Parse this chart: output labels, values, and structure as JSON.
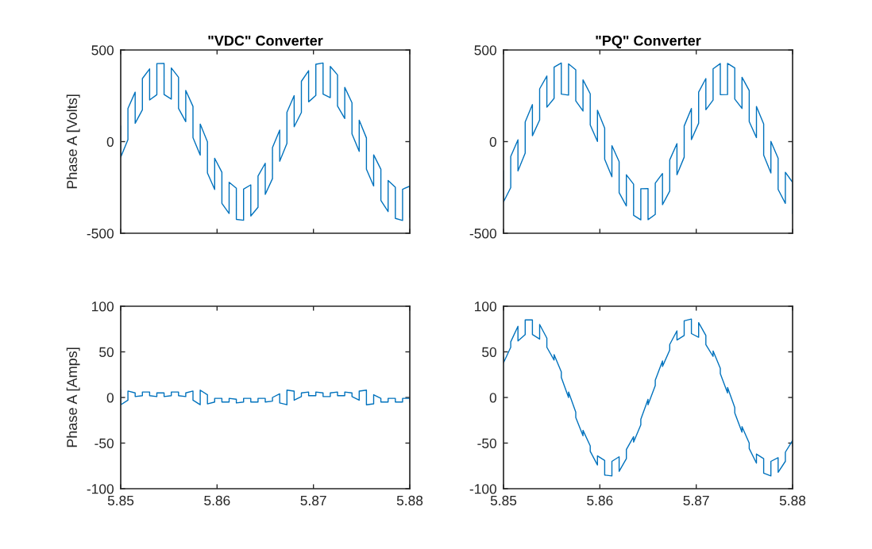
{
  "chart_data": [
    {
      "type": "line",
      "title": "\"VDC\" Converter",
      "ylabel": "Phase A [Volts]",
      "tick_labels": "y",
      "x": [
        5.85,
        5.85,
        5.85075,
        5.85075,
        5.8515,
        5.8515,
        5.85225,
        5.85225,
        5.853,
        5.853,
        5.85375,
        5.85375,
        5.8545,
        5.8545,
        5.85525,
        5.85525,
        5.856,
        5.856,
        5.85675,
        5.85675,
        5.8575,
        5.8575,
        5.85825,
        5.85825,
        5.859,
        5.859,
        5.85975,
        5.85975,
        5.8605,
        5.8605,
        5.86125,
        5.86125,
        5.862,
        5.862,
        5.86275,
        5.86275,
        5.8635,
        5.8635,
        5.86425,
        5.86425,
        5.865,
        5.865,
        5.86575,
        5.86575,
        5.8665,
        5.8665,
        5.86725,
        5.86725,
        5.868,
        5.868,
        5.86875,
        5.86875,
        5.8695,
        5.8695,
        5.87025,
        5.87025,
        5.871,
        5.871,
        5.87175,
        5.87175,
        5.8725,
        5.8725,
        5.87325,
        5.87325,
        5.874,
        5.874,
        5.87475,
        5.87475,
        5.8755,
        5.8755,
        5.87625,
        5.87625,
        5.877,
        5.877,
        5.87775,
        5.87775,
        5.8785,
        5.8785,
        5.87925,
        5.87925,
        5.88,
        5.88
      ],
      "series": [
        {
          "color": "#0072bd",
          "values": [
            85,
            -85,
            11,
            181,
            270,
            100,
            174,
            344,
            397,
            227,
            256,
            426,
            427,
            257,
            232,
            402,
            351,
            181,
            109,
            279,
            192,
            22,
            -74,
            96,
            -1,
            -171,
            -261,
            -91,
            -167,
            -337,
            -392,
            -222,
            -254,
            -424,
            -429,
            -259,
            -236,
            -406,
            -358,
            -188,
            -118,
            -288,
            -202,
            -32,
            63,
            -107,
            -10,
            160,
            251,
            81,
            159,
            329,
            387,
            217,
            252,
            422,
            429,
            259,
            240,
            410,
            364,
            194,
            126,
            296,
            212,
            42,
            -53,
            117,
            20,
            -150,
            -242,
            -72,
            -151,
            -321,
            -382,
            -212,
            -249,
            -419,
            -430,
            -260,
            -243,
            -413
          ]
        }
      ],
      "xlim": [
        5.85,
        5.88
      ],
      "xticks": [
        5.85,
        5.86,
        5.87,
        5.88
      ],
      "ylim": [
        -500,
        500
      ],
      "yticks": [
        -500,
        0,
        500
      ]
    },
    {
      "type": "line",
      "title": "\"PQ\" Converter",
      "tick_labels": "y",
      "x": [
        5.85,
        5.85,
        5.85075,
        5.85075,
        5.8515,
        5.8515,
        5.85225,
        5.85225,
        5.853,
        5.853,
        5.85375,
        5.85375,
        5.8545,
        5.8545,
        5.85525,
        5.85525,
        5.856,
        5.856,
        5.85675,
        5.85675,
        5.8575,
        5.8575,
        5.85825,
        5.85825,
        5.859,
        5.859,
        5.85975,
        5.85975,
        5.8605,
        5.8605,
        5.86125,
        5.86125,
        5.862,
        5.862,
        5.86275,
        5.86275,
        5.8635,
        5.8635,
        5.86425,
        5.86425,
        5.865,
        5.865,
        5.86575,
        5.86575,
        5.8665,
        5.8665,
        5.86725,
        5.86725,
        5.868,
        5.868,
        5.86875,
        5.86875,
        5.8695,
        5.8695,
        5.87025,
        5.87025,
        5.871,
        5.871,
        5.87175,
        5.87175,
        5.8725,
        5.8725,
        5.87325,
        5.87325,
        5.874,
        5.874,
        5.87475,
        5.87475,
        5.8755,
        5.8755,
        5.87625,
        5.87625,
        5.877,
        5.877,
        5.87775,
        5.87775,
        5.8785,
        5.8785,
        5.87925,
        5.87925,
        5.88,
        5.88
      ],
      "series": [
        {
          "color": "#0072bd",
          "values": [
            -159,
            -329,
            -251,
            -81,
            10,
            -160,
            -63,
            107,
            202,
            32,
            118,
            288,
            358,
            188,
            236,
            406,
            429,
            259,
            254,
            424,
            392,
            222,
            167,
            337,
            261,
            91,
            1,
            171,
            74,
            -96,
            -192,
            -22,
            -109,
            -279,
            -351,
            -181,
            -232,
            -402,
            -427,
            -257,
            -256,
            -426,
            -397,
            -227,
            -174,
            -344,
            -270,
            -100,
            -11,
            -181,
            -85,
            85,
            181,
            11,
            100,
            270,
            344,
            174,
            227,
            397,
            426,
            256,
            257,
            427,
            402,
            232,
            181,
            351,
            279,
            109,
            22,
            192,
            96,
            -74,
            -171,
            1,
            -91,
            -261,
            -337,
            -167,
            -222,
            -392
          ]
        }
      ],
      "xlim": [
        5.85,
        5.88
      ],
      "xticks": [
        5.85,
        5.86,
        5.87,
        5.88
      ],
      "ylim": [
        -500,
        500
      ],
      "yticks": [
        -500,
        0,
        500
      ]
    },
    {
      "type": "line",
      "ylabel": "Phase A [Amps]",
      "x": [
        5.85,
        5.85,
        5.85075,
        5.85075,
        5.8515,
        5.8515,
        5.85225,
        5.85225,
        5.853,
        5.853,
        5.85375,
        5.85375,
        5.8545,
        5.8545,
        5.85525,
        5.85525,
        5.856,
        5.856,
        5.85675,
        5.85675,
        5.8575,
        5.8575,
        5.85825,
        5.85825,
        5.859,
        5.859,
        5.85975,
        5.85975,
        5.8605,
        5.8605,
        5.86125,
        5.86125,
        5.862,
        5.862,
        5.86275,
        5.86275,
        5.8635,
        5.8635,
        5.86425,
        5.86425,
        5.865,
        5.865,
        5.86575,
        5.86575,
        5.8665,
        5.8665,
        5.86725,
        5.86725,
        5.868,
        5.868,
        5.86875,
        5.86875,
        5.8695,
        5.8695,
        5.87025,
        5.87025,
        5.871,
        5.871,
        5.87175,
        5.87175,
        5.8725,
        5.8725,
        5.87325,
        5.87325,
        5.874,
        5.874,
        5.87475,
        5.87475,
        5.8755,
        5.8755,
        5.87625,
        5.87625,
        5.877,
        5.877,
        5.87775,
        5.87775,
        5.8785,
        5.8785,
        5.87925,
        5.87925,
        5.88,
        5.88
      ],
      "series": [
        {
          "color": "#0072bd",
          "values": [
            8,
            -8,
            -3,
            7,
            5,
            1,
            2,
            6,
            6,
            2,
            1,
            5,
            5,
            1,
            2,
            6,
            6,
            2,
            1,
            5,
            7,
            -3,
            -8,
            8,
            3,
            -7,
            -5,
            -1,
            -1,
            -5,
            -5,
            -1,
            -2,
            -6,
            -5,
            -1,
            -1,
            -5,
            -5,
            -1,
            -1,
            -5,
            -4,
            0,
            4,
            -6,
            -8,
            8,
            7,
            -3,
            1,
            5,
            6,
            2,
            2,
            6,
            5,
            1,
            1,
            5,
            6,
            2,
            2,
            6,
            5,
            1,
            -3,
            7,
            8,
            -8,
            -7,
            3,
            -1,
            -5,
            -5,
            -1,
            -1,
            -5,
            -5,
            -1,
            -1,
            -5
          ]
        }
      ],
      "xlim": [
        5.85,
        5.88
      ],
      "xticks": [
        5.85,
        5.86,
        5.87,
        5.88
      ],
      "ylim": [
        -100,
        100
      ],
      "yticks": [
        -100,
        -50,
        0,
        50,
        100
      ]
    },
    {
      "type": "line",
      "x": [
        5.85,
        5.85,
        5.85075,
        5.85075,
        5.8515,
        5.8515,
        5.85225,
        5.85225,
        5.853,
        5.853,
        5.85375,
        5.85375,
        5.8545,
        5.8545,
        5.85525,
        5.85525,
        5.856,
        5.856,
        5.85675,
        5.85675,
        5.8575,
        5.8575,
        5.85825,
        5.85825,
        5.859,
        5.859,
        5.85975,
        5.85975,
        5.8605,
        5.8605,
        5.86125,
        5.86125,
        5.862,
        5.862,
        5.86275,
        5.86275,
        5.8635,
        5.8635,
        5.86425,
        5.86425,
        5.865,
        5.865,
        5.86575,
        5.86575,
        5.8665,
        5.8665,
        5.86725,
        5.86725,
        5.868,
        5.868,
        5.86875,
        5.86875,
        5.8695,
        5.8695,
        5.87025,
        5.87025,
        5.871,
        5.871,
        5.87175,
        5.87175,
        5.8725,
        5.8725,
        5.87325,
        5.87325,
        5.874,
        5.874,
        5.87475,
        5.87475,
        5.8755,
        5.8755,
        5.87625,
        5.87625,
        5.877,
        5.877,
        5.87775,
        5.87775,
        5.8785,
        5.8785,
        5.87925,
        5.87925,
        5.88,
        5.88
      ],
      "series": [
        {
          "color": "#0072bd",
          "values": [
            44,
            38,
            55,
            61,
            78,
            62,
            69,
            85,
            85,
            69,
            64,
            80,
            65,
            55,
            41,
            47,
            28,
            22,
            0,
            6,
            -16,
            -22,
            -42,
            -36,
            -53,
            -59,
            -74,
            -64,
            -69,
            -85,
            -86,
            -70,
            -65,
            -81,
            -67,
            -57,
            -43,
            -49,
            -30,
            -24,
            -2,
            -8,
            13,
            19,
            40,
            34,
            52,
            58,
            73,
            63,
            68,
            84,
            86,
            70,
            66,
            82,
            68,
            58,
            45,
            51,
            32,
            26,
            5,
            11,
            -11,
            -17,
            -38,
            -32,
            -50,
            -56,
            -72,
            -62,
            -67,
            -83,
            -86,
            -70,
            -66,
            -82,
            -70,
            -60,
            -47,
            -53
          ]
        }
      ],
      "xlim": [
        5.85,
        5.88
      ],
      "xticks": [
        5.85,
        5.86,
        5.87,
        5.88
      ],
      "ylim": [
        -100,
        100
      ],
      "yticks": [
        -100,
        -50,
        0,
        50,
        100
      ]
    }
  ]
}
